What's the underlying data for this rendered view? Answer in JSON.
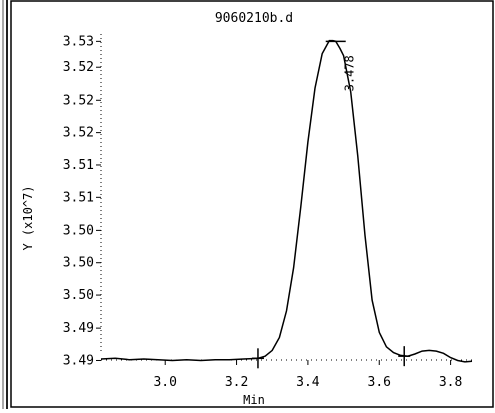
{
  "chart_data": {
    "type": "line",
    "title": "9060210b.d",
    "xlabel": "Min",
    "ylabel": "Y (x10^7)",
    "xlim": [
      2.82,
      3.86
    ],
    "ylim": [
      3.4875,
      3.5323
    ],
    "x_ticks": [
      "3.0",
      "3.2",
      "3.4",
      "3.6",
      "3.8"
    ],
    "x_tick_values": [
      3.0,
      3.2,
      3.4,
      3.6,
      3.8
    ],
    "y_ticks": [
      "3.53",
      "3.52",
      "3.52",
      "3.52",
      "3.51",
      "3.51",
      "3.50",
      "3.50",
      "3.50",
      "3.49",
      "3.49"
    ],
    "y_tick_values": [
      3.531,
      3.5274,
      3.5228,
      3.5183,
      3.5138,
      3.5093,
      3.5047,
      3.5002,
      3.4957,
      3.4911,
      3.4866
    ],
    "series": [
      {
        "x": [
          2.82,
          2.86,
          2.9,
          2.94,
          2.98,
          3.02,
          3.06,
          3.1,
          3.14,
          3.18,
          3.22,
          3.26,
          3.28,
          3.3,
          3.32,
          3.34,
          3.36,
          3.38,
          3.4,
          3.42,
          3.44,
          3.46,
          3.47,
          3.478,
          3.49,
          3.5,
          3.52,
          3.54,
          3.56,
          3.58,
          3.6,
          3.62,
          3.64,
          3.66,
          3.68,
          3.7,
          3.72,
          3.74,
          3.76,
          3.78,
          3.8,
          3.82,
          3.84,
          3.86
        ],
        "y": [
          3.4868,
          3.4869,
          3.4867,
          3.4868,
          3.4867,
          3.4866,
          3.4867,
          3.4866,
          3.4867,
          3.4867,
          3.4868,
          3.4869,
          3.4872,
          3.488,
          3.4898,
          3.4935,
          3.4995,
          3.508,
          3.517,
          3.5245,
          3.5293,
          3.5311,
          3.5311,
          3.531,
          3.53,
          3.529,
          3.524,
          3.515,
          3.504,
          3.495,
          3.4905,
          3.4885,
          3.4877,
          3.4873,
          3.4872,
          3.4875,
          3.4879,
          3.488,
          3.4879,
          3.4876,
          3.487,
          3.4866,
          3.4864,
          3.4865
        ]
      }
    ],
    "annotations": [
      {
        "text": "3.478",
        "x": 3.478,
        "y": 3.531
      }
    ],
    "markers": [
      {
        "x": 3.478,
        "y": 3.531
      },
      {
        "x": 3.26,
        "y": 3.4869
      },
      {
        "x": 3.67,
        "y": 3.4872
      }
    ],
    "grid": false,
    "colors": {
      "line": "#000000",
      "frame": "#000000",
      "left_strip": "#4a4a4a"
    }
  }
}
